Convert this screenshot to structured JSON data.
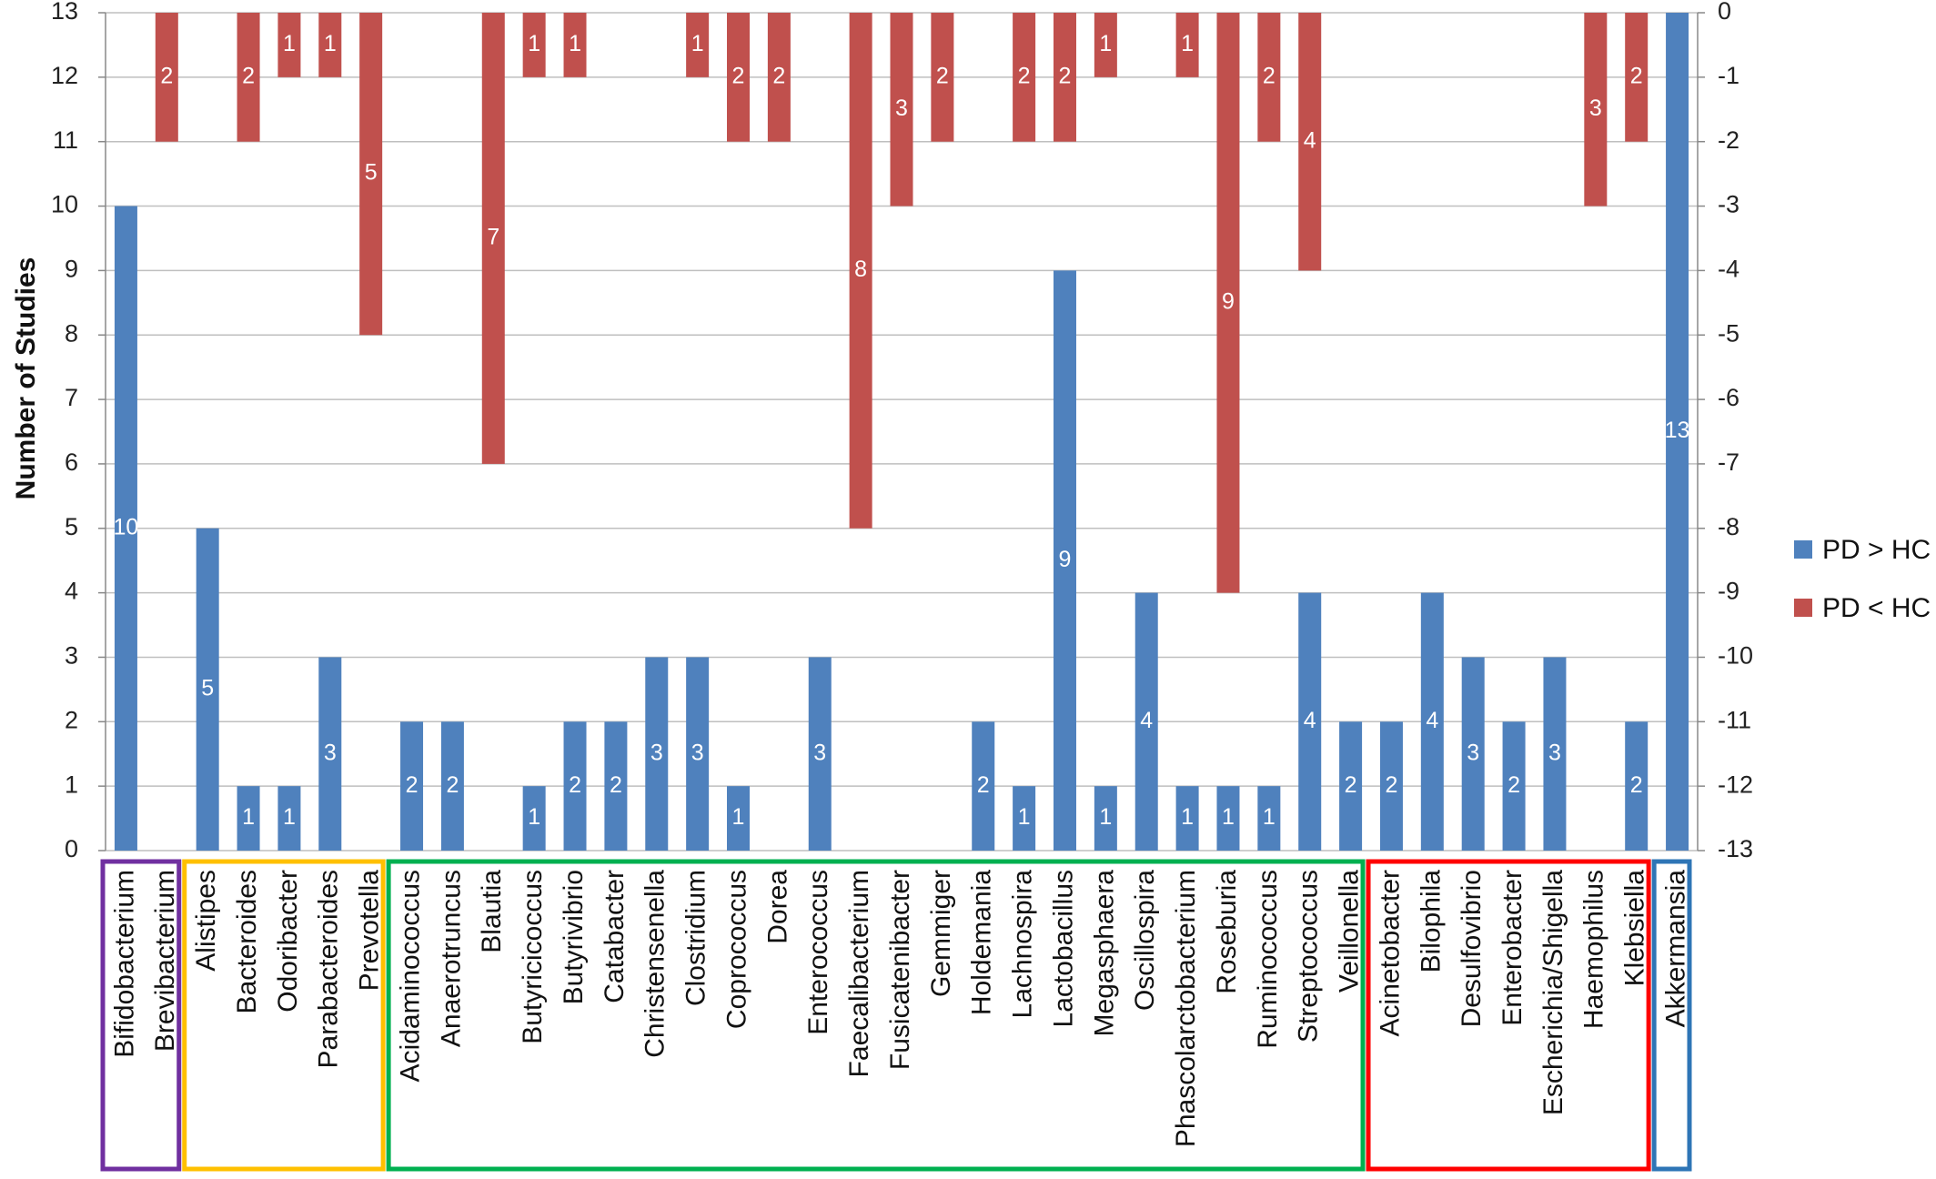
{
  "chart_data": {
    "type": "bar",
    "ylabel": "Number of Studies",
    "ylim": [
      0,
      13
    ],
    "y2lim": [
      -13,
      0
    ],
    "yticks": [
      "0",
      "1",
      "2",
      "3",
      "4",
      "5",
      "6",
      "7",
      "8",
      "9",
      "10",
      "11",
      "12",
      "13"
    ],
    "y2ticks": [
      "-13",
      "-12",
      "-11",
      "-10",
      "-9",
      "-8",
      "-7",
      "-6",
      "-5",
      "-4",
      "-3",
      "-2",
      "-1",
      "0"
    ],
    "grid": true,
    "legend_position": "right",
    "colors": {
      "pd_gt_hc": "#4F81BD",
      "pd_lt_hc": "#C0504D"
    },
    "categories": [
      "Bifidobacterium",
      "Brevibacterium",
      "Alistipes",
      "Bacteroides",
      "Odoribacter",
      "Parabacteroides",
      "Prevotella",
      "Acidaminococcus",
      "Anaerotruncus",
      "Blautia",
      "Butyricicoccus",
      "Butyrivibrio",
      "Catabacter",
      "Christensenella",
      "Clostridium",
      "Coprococcus",
      "Dorea",
      "Enterococcus",
      "Faecalibacterium",
      "Fusicatenibacter",
      "Gemmiger",
      "Holdemania",
      "Lachnospira",
      "Lactobacillus",
      "Megasphaera",
      "Oscillospira",
      "Phascolarctobacterium",
      "Roseburia",
      "Ruminococcus",
      "Streptococcus",
      "Veillonella",
      "Acinetobacter",
      "Bilophila",
      "Desulfovibrio",
      "Enterobacter",
      "Escherichia/Shigella",
      "Haemophilus",
      "Klebsiella",
      "Akkermansia"
    ],
    "series": [
      {
        "name": "PD > HC",
        "values": [
          10,
          0,
          5,
          1,
          1,
          3,
          0,
          2,
          2,
          0,
          1,
          2,
          2,
          3,
          3,
          1,
          0,
          3,
          0,
          0,
          0,
          2,
          1,
          9,
          1,
          4,
          1,
          1,
          1,
          4,
          2,
          2,
          4,
          3,
          2,
          3,
          0,
          2,
          13
        ]
      },
      {
        "name": "PD < HC",
        "values": [
          0,
          2,
          0,
          2,
          1,
          1,
          5,
          0,
          0,
          7,
          1,
          1,
          0,
          0,
          1,
          2,
          2,
          0,
          8,
          3,
          2,
          0,
          2,
          2,
          1,
          0,
          1,
          9,
          2,
          4,
          0,
          0,
          0,
          0,
          0,
          0,
          3,
          2,
          0
        ]
      }
    ],
    "groups": [
      {
        "start": 0,
        "end": 1,
        "color": "#7030A0"
      },
      {
        "start": 2,
        "end": 6,
        "color": "#FFC000"
      },
      {
        "start": 7,
        "end": 30,
        "color": "#00B050"
      },
      {
        "start": 31,
        "end": 37,
        "color": "#FF0000"
      },
      {
        "start": 38,
        "end": 38,
        "color": "#2E75B6"
      }
    ]
  }
}
